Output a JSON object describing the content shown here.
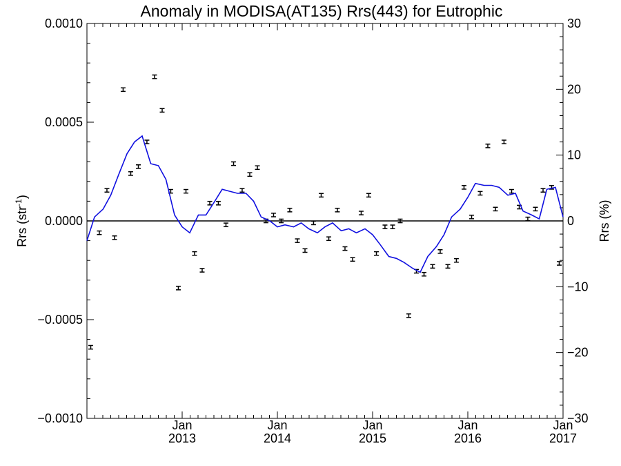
{
  "chart_data": {
    "type": "line",
    "title": "Anomaly in MODISA(AT135) Rrs(443) for Eutrophic",
    "ylabel_left": {
      "base": "Rrs (str",
      "sup": "-1",
      "tail": ")"
    },
    "ylabel_right": "Rrs (%)",
    "xlabel": "",
    "ylim_left": [
      -0.001,
      0.001
    ],
    "ylim_right": [
      -30,
      30
    ],
    "xlim": [
      2012.0,
      2017.0
    ],
    "grid": false,
    "left_ticks": [
      {
        "value": 0.001,
        "label": "0.0010"
      },
      {
        "value": 0.0005,
        "label": "0.0005"
      },
      {
        "value": 0.0,
        "label": "0.0000"
      },
      {
        "value": -0.0005,
        "label": "−0.0005"
      },
      {
        "value": -0.001,
        "label": "−0.0010"
      }
    ],
    "right_ticks": [
      {
        "value": 30,
        "label": "30"
      },
      {
        "value": 20,
        "label": "20"
      },
      {
        "value": 10,
        "label": "10"
      },
      {
        "value": 0,
        "label": "0"
      },
      {
        "value": -10,
        "label": "−10"
      },
      {
        "value": -20,
        "label": "−20"
      },
      {
        "value": -30,
        "label": "−30"
      }
    ],
    "x_ticks": [
      {
        "value": 2013.0,
        "month": "Jan",
        "year": "2013"
      },
      {
        "value": 2014.0,
        "month": "Jan",
        "year": "2014"
      },
      {
        "value": 2015.0,
        "month": "Jan",
        "year": "2015"
      },
      {
        "value": 2016.0,
        "month": "Jan",
        "year": "2016"
      },
      {
        "value": 2017.0,
        "month": "Jan",
        "year": "2017"
      }
    ],
    "zero_line_color": "#000000",
    "series": [
      {
        "style": "errorbar",
        "color": "#000000",
        "err": 9e-06,
        "x": [
          2012.04,
          2012.13,
          2012.21,
          2012.29,
          2012.38,
          2012.46,
          2012.54,
          2012.63,
          2012.71,
          2012.79,
          2012.88,
          2012.96,
          2013.04,
          2013.13,
          2013.21,
          2013.29,
          2013.38,
          2013.46,
          2013.54,
          2013.63,
          2013.71,
          2013.79,
          2013.88,
          2013.96,
          2014.04,
          2014.13,
          2014.21,
          2014.29,
          2014.38,
          2014.46,
          2014.54,
          2014.63,
          2014.71,
          2014.79,
          2014.88,
          2014.96,
          2015.04,
          2015.13,
          2015.21,
          2015.29,
          2015.38,
          2015.46,
          2015.54,
          2015.63,
          2015.71,
          2015.79,
          2015.88,
          2015.96,
          2016.04,
          2016.13,
          2016.21,
          2016.29,
          2016.38,
          2016.46,
          2016.54,
          2016.63,
          2016.71,
          2016.79,
          2016.88,
          2016.96
        ],
        "y": [
          -0.00064,
          -6e-05,
          0.000155,
          -8.5e-05,
          0.000665,
          0.00024,
          0.000275,
          0.0004,
          0.00073,
          0.00056,
          0.00015,
          -0.00034,
          0.00015,
          -0.000165,
          -0.00025,
          9e-05,
          9e-05,
          -2e-05,
          0.00029,
          0.000155,
          0.000235,
          0.00027,
          0.0,
          3e-05,
          0.0,
          5.5e-05,
          -0.0001,
          -0.00015,
          -1e-05,
          0.00013,
          -9e-05,
          5.5e-05,
          -0.00014,
          -0.000195,
          4e-05,
          0.00013,
          -0.000165,
          -3e-05,
          -3e-05,
          0.0,
          -0.00048,
          -0.000255,
          -0.00027,
          -0.00023,
          -0.000155,
          -0.00023,
          -0.0002,
          0.00017,
          2e-05,
          0.00014,
          0.00038,
          6e-05,
          0.0004,
          0.00015,
          7e-05,
          1e-05,
          6e-05,
          0.000155,
          0.00017,
          -0.000215
        ]
      },
      {
        "style": "line",
        "color": "#1010e0",
        "x": [
          2012.0,
          2012.08,
          2012.17,
          2012.25,
          2012.33,
          2012.42,
          2012.5,
          2012.58,
          2012.67,
          2012.75,
          2012.83,
          2012.92,
          2013.0,
          2013.08,
          2013.17,
          2013.25,
          2013.33,
          2013.42,
          2013.5,
          2013.58,
          2013.67,
          2013.75,
          2013.83,
          2013.92,
          2014.0,
          2014.08,
          2014.17,
          2014.25,
          2014.33,
          2014.42,
          2014.5,
          2014.58,
          2014.67,
          2014.75,
          2014.83,
          2014.92,
          2015.0,
          2015.08,
          2015.17,
          2015.25,
          2015.33,
          2015.42,
          2015.5,
          2015.58,
          2015.67,
          2015.75,
          2015.83,
          2015.92,
          2016.0,
          2016.08,
          2016.17,
          2016.25,
          2016.33,
          2016.42,
          2016.5,
          2016.58,
          2016.67,
          2016.75,
          2016.83,
          2016.92,
          2017.0
        ],
        "y": [
          -0.0001,
          2e-05,
          6e-05,
          0.00013,
          0.00023,
          0.00034,
          0.0004,
          0.00043,
          0.00029,
          0.00028,
          0.00021,
          3e-05,
          -3e-05,
          -6e-05,
          3e-05,
          3e-05,
          9e-05,
          0.00016,
          0.00015,
          0.00014,
          0.00014,
          0.0001,
          2e-05,
          -0.0,
          -3e-05,
          -2e-05,
          -3e-05,
          -1e-05,
          -4e-05,
          -6e-05,
          -3e-05,
          -1e-05,
          -5e-05,
          -4e-05,
          -6e-05,
          -4e-05,
          -7e-05,
          -0.00012,
          -0.00018,
          -0.00019,
          -0.00021,
          -0.00024,
          -0.00026,
          -0.00018,
          -0.00013,
          -7e-05,
          2e-05,
          6e-05,
          0.00012,
          0.00019,
          0.00018,
          0.00018,
          0.00017,
          0.00013,
          0.00014,
          5e-05,
          3e-05,
          1e-05,
          0.00016,
          0.00017,
          2e-05
        ]
      }
    ]
  }
}
